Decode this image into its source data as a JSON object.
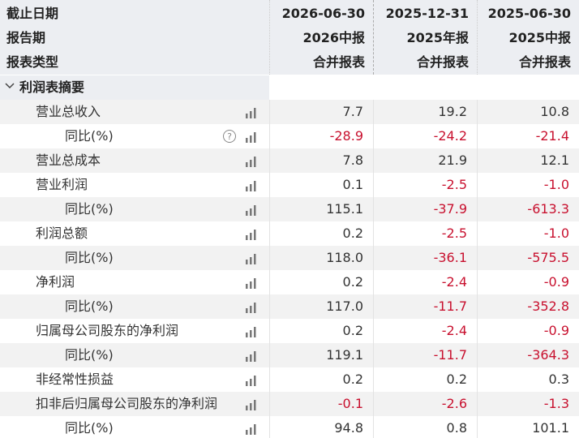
{
  "header": {
    "rows": [
      {
        "label": "截止日期",
        "cols": [
          "2026-06-30",
          "2025-12-31",
          "2025-06-30"
        ]
      },
      {
        "label": "报告期",
        "cols": [
          "2026中报",
          "2025年报",
          "2025中报"
        ]
      },
      {
        "label": "报表类型",
        "cols": [
          "合并报表",
          "合并报表",
          "合并报表"
        ]
      }
    ]
  },
  "section": "利润表摘要",
  "items": [
    {
      "label": "营业总收入",
      "values": [
        "7.7",
        "19.2",
        "10.8"
      ],
      "sub": {
        "label": "同比(%)",
        "values": [
          "-28.9",
          "-24.2",
          "-21.4"
        ]
      }
    },
    {
      "label": "营业总成本",
      "values": [
        "7.8",
        "21.9",
        "12.1"
      ]
    },
    {
      "label": "营业利润",
      "values": [
        "0.1",
        "-2.5",
        "-1.0"
      ],
      "sub": {
        "label": "同比(%)",
        "values": [
          "115.1",
          "-37.9",
          "-613.3"
        ]
      }
    },
    {
      "label": "利润总额",
      "values": [
        "0.2",
        "-2.5",
        "-1.0"
      ],
      "sub": {
        "label": "同比(%)",
        "values": [
          "118.0",
          "-36.1",
          "-575.5"
        ]
      }
    },
    {
      "label": "净利润",
      "values": [
        "0.2",
        "-2.4",
        "-0.9"
      ],
      "sub": {
        "label": "同比(%)",
        "values": [
          "117.0",
          "-11.7",
          "-352.8"
        ]
      }
    },
    {
      "label": "归属母公司股东的净利润",
      "values": [
        "0.2",
        "-2.4",
        "-0.9"
      ],
      "sub": {
        "label": "同比(%)",
        "values": [
          "119.1",
          "-11.7",
          "-364.3"
        ]
      }
    },
    {
      "label": "非经常性损益",
      "values": [
        "0.2",
        "0.2",
        "0.3"
      ]
    },
    {
      "label": "扣非后归属母公司股东的净利润",
      "values": [
        "-0.1",
        "-2.6",
        "-1.3"
      ],
      "sub": {
        "label": "同比(%)",
        "values": [
          "94.8",
          "0.8",
          "101.1"
        ]
      }
    }
  ]
}
